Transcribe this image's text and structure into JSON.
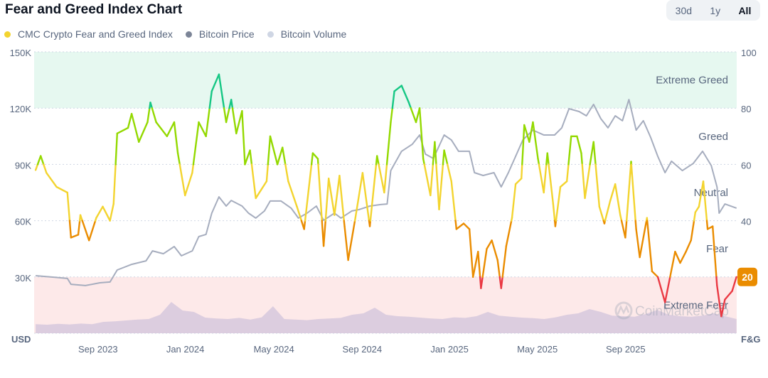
{
  "header": {
    "title": "Fear and Greed Index Chart"
  },
  "range_buttons": [
    {
      "label": "30d"
    },
    {
      "label": "1y"
    },
    {
      "label": "All",
      "active": true
    }
  ],
  "legend": [
    {
      "label": "CMC Crypto Fear and Greed Index",
      "color": "#f3d42f"
    },
    {
      "label": "Bitcoin Price",
      "color": "#7c8597"
    },
    {
      "label": "Bitcoin Volume",
      "color": "#cfd6e4"
    }
  ],
  "watermark": "CoinMarketCap",
  "chart_data": {
    "type": "line",
    "left_axis": {
      "unit": "USD",
      "range": [
        0,
        150000
      ],
      "ticks": [
        {
          "value": 30000,
          "label": "30K"
        },
        {
          "value": 60000,
          "label": "60K"
        },
        {
          "value": 90000,
          "label": "90K"
        },
        {
          "value": 120000,
          "label": "120K"
        },
        {
          "value": 150000,
          "label": "150K"
        }
      ]
    },
    "right_axis": {
      "unit": "F&G",
      "range": [
        0,
        100
      ],
      "ticks": [
        {
          "value": 40,
          "label": "40"
        },
        {
          "value": 60,
          "label": "60"
        },
        {
          "value": 80,
          "label": "80"
        },
        {
          "value": 100,
          "label": "100"
        }
      ]
    },
    "x_ticks": [
      {
        "date": "2023-09-01",
        "label": "Sep 2023"
      },
      {
        "date": "2024-01-01",
        "label": "Jan 2024"
      },
      {
        "date": "2024-05-01",
        "label": "May 2024"
      },
      {
        "date": "2024-09-01",
        "label": "Sep 2024"
      },
      {
        "date": "2025-01-01",
        "label": "Jan 2025"
      },
      {
        "date": "2025-05-01",
        "label": "May 2025"
      },
      {
        "date": "2025-09-01",
        "label": "Sep 2025"
      }
    ],
    "grid": true,
    "zones": [
      {
        "label": "Extreme Greed",
        "from": 80,
        "to": 100,
        "color": "#16c784",
        "fill": "#e6f8f0"
      },
      {
        "label": "Greed",
        "from": 60,
        "to": 80,
        "color": "#93d900"
      },
      {
        "label": "Neutral",
        "from": 40,
        "to": 60,
        "color": "#f3d42f"
      },
      {
        "label": "Fear",
        "from": 20,
        "to": 40,
        "color": "#ea8c00"
      },
      {
        "label": "Extreme Fear",
        "from": 0,
        "to": 20,
        "color": "#ea3943",
        "fill": "#fde9e9"
      }
    ],
    "current_value": {
      "label": "20",
      "color": "#ea8c00"
    },
    "fear_greed": [
      [
        "2023-07-04",
        58
      ],
      [
        "2023-07-11",
        63
      ],
      [
        "2023-07-19",
        57
      ],
      [
        "2023-08-02",
        52
      ],
      [
        "2023-08-17",
        50
      ],
      [
        "2023-08-22",
        34
      ],
      [
        "2023-09-01",
        35
      ],
      [
        "2023-09-04",
        42
      ],
      [
        "2023-09-16",
        33
      ],
      [
        "2023-09-26",
        41
      ],
      [
        "2023-10-05",
        45
      ],
      [
        "2023-10-15",
        40
      ],
      [
        "2023-10-20",
        46
      ],
      [
        "2023-10-25",
        71
      ],
      [
        "2023-11-09",
        73
      ],
      [
        "2023-11-14",
        78
      ],
      [
        "2023-11-24",
        68
      ],
      [
        "2023-12-06",
        75
      ],
      [
        "2023-12-10",
        82
      ],
      [
        "2023-12-18",
        75
      ],
      [
        "2024-01-02",
        70
      ],
      [
        "2024-01-12",
        75
      ],
      [
        "2024-01-17",
        64
      ],
      [
        "2024-01-27",
        49
      ],
      [
        "2024-02-06",
        57
      ],
      [
        "2024-02-15",
        75
      ],
      [
        "2024-02-25",
        70
      ],
      [
        "2024-03-04",
        86
      ],
      [
        "2024-03-14",
        92
      ],
      [
        "2024-03-24",
        75
      ],
      [
        "2024-03-31",
        83
      ],
      [
        "2024-04-07",
        71
      ],
      [
        "2024-04-15",
        79
      ],
      [
        "2024-04-19",
        60
      ],
      [
        "2024-04-26",
        65
      ],
      [
        "2024-05-04",
        48
      ],
      [
        "2024-05-19",
        54
      ],
      [
        "2024-05-24",
        70
      ],
      [
        "2024-06-03",
        60
      ],
      [
        "2024-06-10",
        66
      ],
      [
        "2024-06-18",
        54
      ],
      [
        "2024-06-30",
        45
      ],
      [
        "2024-07-10",
        37
      ],
      [
        "2024-07-22",
        64
      ],
      [
        "2024-07-29",
        62
      ],
      [
        "2024-08-06",
        31
      ],
      [
        "2024-08-13",
        55
      ],
      [
        "2024-08-21",
        42
      ],
      [
        "2024-08-28",
        56
      ],
      [
        "2024-09-04",
        38
      ],
      [
        "2024-09-09",
        26
      ],
      [
        "2024-09-19",
        41
      ],
      [
        "2024-09-29",
        57
      ],
      [
        "2024-10-09",
        38
      ],
      [
        "2024-10-19",
        63
      ],
      [
        "2024-10-29",
        50
      ],
      [
        "2024-11-07",
        75
      ],
      [
        "2024-11-12",
        86
      ],
      [
        "2024-11-22",
        88
      ],
      [
        "2024-12-02",
        82
      ],
      [
        "2024-12-12",
        75
      ],
      [
        "2024-12-17",
        80
      ],
      [
        "2024-12-22",
        62
      ],
      [
        "2025-01-01",
        49
      ],
      [
        "2025-01-07",
        68
      ],
      [
        "2025-01-13",
        44
      ],
      [
        "2025-01-20",
        65
      ],
      [
        "2025-01-30",
        54
      ],
      [
        "2025-02-06",
        37
      ],
      [
        "2025-02-16",
        39
      ],
      [
        "2025-02-24",
        37
      ],
      [
        "2025-03-01",
        20
      ],
      [
        "2025-03-08",
        29
      ],
      [
        "2025-03-12",
        16
      ],
      [
        "2025-03-20",
        30
      ],
      [
        "2025-03-27",
        33
      ],
      [
        "2025-04-04",
        26
      ],
      [
        "2025-04-09",
        16
      ],
      [
        "2025-04-16",
        31
      ],
      [
        "2025-04-24",
        41
      ],
      [
        "2025-04-29",
        53
      ],
      [
        "2025-05-07",
        55
      ],
      [
        "2025-05-11",
        74
      ],
      [
        "2025-05-18",
        68
      ],
      [
        "2025-05-23",
        75
      ],
      [
        "2025-05-30",
        62
      ],
      [
        "2025-06-07",
        50
      ],
      [
        "2025-06-12",
        64
      ],
      [
        "2025-06-20",
        46
      ],
      [
        "2025-06-23",
        38
      ],
      [
        "2025-06-30",
        52
      ],
      [
        "2025-07-09",
        54
      ],
      [
        "2025-07-15",
        70
      ],
      [
        "2025-07-23",
        70
      ],
      [
        "2025-07-29",
        64
      ],
      [
        "2025-08-03",
        48
      ],
      [
        "2025-08-10",
        60
      ],
      [
        "2025-08-15",
        68
      ],
      [
        "2025-08-23",
        45
      ],
      [
        "2025-08-30",
        39
      ],
      [
        "2025-09-07",
        47
      ],
      [
        "2025-09-14",
        53
      ],
      [
        "2025-09-21",
        42
      ],
      [
        "2025-09-28",
        34
      ],
      [
        "2025-10-06",
        61
      ],
      [
        "2025-10-13",
        37
      ],
      [
        "2025-10-18",
        27
      ],
      [
        "2025-10-28",
        41
      ],
      [
        "2025-11-04",
        22
      ],
      [
        "2025-11-12",
        20
      ],
      [
        "2025-11-22",
        11
      ],
      [
        "2025-11-29",
        20
      ],
      [
        "2025-12-06",
        29
      ],
      [
        "2025-12-13",
        25
      ],
      [
        "2025-12-21",
        29
      ],
      [
        "2025-12-28",
        33
      ],
      [
        "2026-01-03",
        43
      ],
      [
        "2026-01-08",
        45
      ],
      [
        "2026-01-14",
        54
      ],
      [
        "2026-01-20",
        37
      ],
      [
        "2026-01-27",
        38
      ],
      [
        "2026-02-02",
        17
      ],
      [
        "2026-02-08",
        6
      ],
      [
        "2026-02-13",
        12
      ],
      [
        "2026-02-23",
        15
      ],
      [
        "2026-03-01",
        20
      ]
    ],
    "bitcoin_price": [
      [
        "2023-07-04",
        30700
      ],
      [
        "2023-07-29",
        29900
      ],
      [
        "2023-08-17",
        29200
      ],
      [
        "2023-08-22",
        26100
      ],
      [
        "2023-09-11",
        25400
      ],
      [
        "2023-10-01",
        26900
      ],
      [
        "2023-10-15",
        27300
      ],
      [
        "2023-10-25",
        33700
      ],
      [
        "2023-11-14",
        36700
      ],
      [
        "2023-12-04",
        38600
      ],
      [
        "2023-12-13",
        43900
      ],
      [
        "2023-12-28",
        42400
      ],
      [
        "2024-01-12",
        46200
      ],
      [
        "2024-01-22",
        41300
      ],
      [
        "2024-02-06",
        43900
      ],
      [
        "2024-02-15",
        51500
      ],
      [
        "2024-02-25",
        52700
      ],
      [
        "2024-03-04",
        64000
      ],
      [
        "2024-03-14",
        72700
      ],
      [
        "2024-03-24",
        67800
      ],
      [
        "2024-03-31",
        70800
      ],
      [
        "2024-04-15",
        67800
      ],
      [
        "2024-04-24",
        64000
      ],
      [
        "2024-05-04",
        61400
      ],
      [
        "2024-05-16",
        65200
      ],
      [
        "2024-05-24",
        70500
      ],
      [
        "2024-06-08",
        70500
      ],
      [
        "2024-06-22",
        66700
      ],
      [
        "2024-07-02",
        61400
      ],
      [
        "2024-07-14",
        64000
      ],
      [
        "2024-07-27",
        67800
      ],
      [
        "2024-08-06",
        60200
      ],
      [
        "2024-08-21",
        64000
      ],
      [
        "2024-08-30",
        61400
      ],
      [
        "2024-09-14",
        65200
      ],
      [
        "2024-09-24",
        65900
      ],
      [
        "2024-10-09",
        67800
      ],
      [
        "2024-10-24",
        68600
      ],
      [
        "2024-11-02",
        68900
      ],
      [
        "2024-11-07",
        86700
      ],
      [
        "2024-11-22",
        97000
      ],
      [
        "2024-12-07",
        100800
      ],
      [
        "2024-12-17",
        105700
      ],
      [
        "2024-12-25",
        95500
      ],
      [
        "2025-01-05",
        93200
      ],
      [
        "2025-01-20",
        105700
      ],
      [
        "2025-01-30",
        103000
      ],
      [
        "2025-02-09",
        97000
      ],
      [
        "2025-02-24",
        97000
      ],
      [
        "2025-03-03",
        85600
      ],
      [
        "2025-03-15",
        84100
      ],
      [
        "2025-03-30",
        85600
      ],
      [
        "2025-04-09",
        78000
      ],
      [
        "2025-04-19",
        85600
      ],
      [
        "2025-04-29",
        94300
      ],
      [
        "2025-05-09",
        103000
      ],
      [
        "2025-05-23",
        108300
      ],
      [
        "2025-06-07",
        105700
      ],
      [
        "2025-06-22",
        105700
      ],
      [
        "2025-07-02",
        109500
      ],
      [
        "2025-07-12",
        119700
      ],
      [
        "2025-07-26",
        118200
      ],
      [
        "2025-08-05",
        115900
      ],
      [
        "2025-08-15",
        122000
      ],
      [
        "2025-08-25",
        114400
      ],
      [
        "2025-09-04",
        109500
      ],
      [
        "2025-09-14",
        115900
      ],
      [
        "2025-09-24",
        113300
      ],
      [
        "2025-10-03",
        124600
      ],
      [
        "2025-10-13",
        108300
      ],
      [
        "2025-10-23",
        113300
      ],
      [
        "2025-11-02",
        104500
      ],
      [
        "2025-11-12",
        94300
      ],
      [
        "2025-11-22",
        85600
      ],
      [
        "2025-12-01",
        91700
      ],
      [
        "2025-12-16",
        86700
      ],
      [
        "2025-12-31",
        90500
      ],
      [
        "2026-01-13",
        97000
      ],
      [
        "2026-01-25",
        89400
      ],
      [
        "2026-02-02",
        78000
      ],
      [
        "2026-02-05",
        64000
      ],
      [
        "2026-02-13",
        68900
      ],
      [
        "2026-03-01",
        66700
      ]
    ],
    "bitcoin_volume_relative": [
      0.12,
      0.1,
      0.13,
      0.11,
      0.14,
      0.12,
      0.2,
      0.22,
      0.25,
      0.28,
      0.3,
      0.45,
      0.9,
      0.6,
      0.55,
      0.35,
      0.32,
      0.3,
      0.34,
      0.28,
      0.36,
      0.75,
      0.3,
      0.28,
      0.26,
      0.3,
      0.32,
      0.34,
      0.45,
      0.5,
      0.7,
      0.45,
      0.4,
      0.38,
      0.35,
      0.32,
      0.3,
      0.36,
      0.34,
      0.4,
      0.55,
      0.42,
      0.38,
      0.35,
      0.33,
      0.3,
      0.36,
      0.45,
      0.5,
      0.65,
      0.55,
      0.42,
      0.4,
      0.38,
      0.48,
      0.62,
      0.45,
      0.4,
      0.38,
      0.42,
      0.5,
      0.4,
      0.3
    ]
  }
}
